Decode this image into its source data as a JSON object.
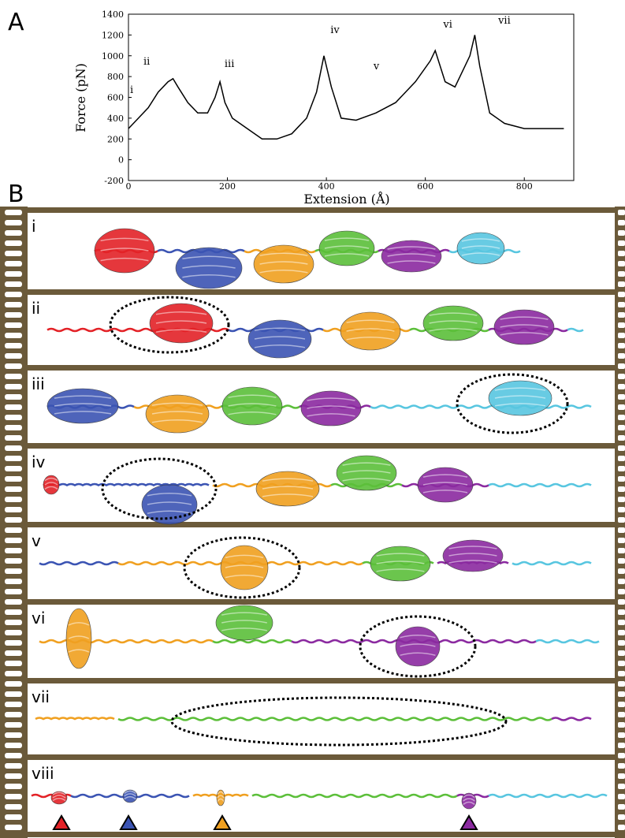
{
  "chart_data": {
    "type": "line",
    "panel_label": "A",
    "xlabel": "Extension (Å)",
    "ylabel": "Force (pN)",
    "xlim": [
      0,
      900
    ],
    "ylim": [
      -200,
      1400
    ],
    "xticks": [
      0,
      200,
      400,
      600,
      800
    ],
    "yticks": [
      -200,
      0,
      200,
      400,
      600,
      800,
      1000,
      1200,
      1400
    ],
    "color": "#000000",
    "x": [
      0,
      10,
      20,
      40,
      60,
      80,
      90,
      100,
      120,
      140,
      160,
      175,
      185,
      195,
      210,
      240,
      270,
      300,
      330,
      360,
      380,
      395,
      410,
      430,
      460,
      500,
      540,
      580,
      610,
      620,
      640,
      660,
      690,
      700,
      710,
      730,
      760,
      800,
      840,
      880
    ],
    "values": [
      300,
      350,
      400,
      500,
      650,
      750,
      780,
      700,
      550,
      450,
      450,
      600,
      750,
      550,
      400,
      300,
      200,
      200,
      250,
      400,
      650,
      1000,
      700,
      400,
      380,
      450,
      550,
      750,
      950,
      1050,
      750,
      700,
      1000,
      1200,
      900,
      450,
      350,
      300,
      300,
      300
    ],
    "annotations": [
      {
        "text": "i",
        "x": 0,
        "y": 640
      },
      {
        "text": "ii",
        "x": 27,
        "y": 915
      },
      {
        "text": "iii",
        "x": 191,
        "y": 892
      },
      {
        "text": "iv",
        "x": 405,
        "y": 1218
      },
      {
        "text": "v",
        "x": 492,
        "y": 870
      },
      {
        "text": "vi",
        "x": 633,
        "y": 1271
      },
      {
        "text": "vii",
        "x": 744,
        "y": 1309
      }
    ]
  },
  "figure": {
    "panel_b": "B",
    "frames": [
      "i",
      "ii",
      "iii",
      "iv",
      "v",
      "vi",
      "vii",
      "viii"
    ]
  }
}
